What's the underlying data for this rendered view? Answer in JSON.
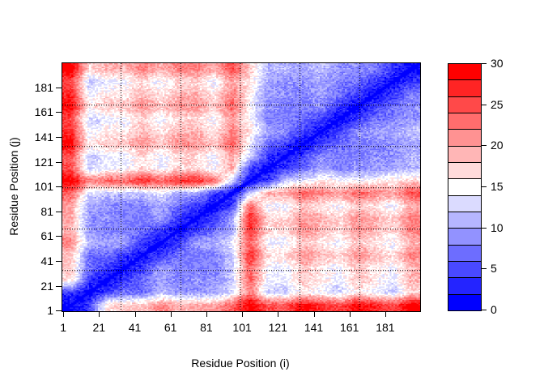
{
  "figure": {
    "background": "#ffffff",
    "plot_border_color": "#000000",
    "grid_color": "#000000",
    "text_color": "#000000"
  },
  "chart_data": {
    "type": "heatmap",
    "title": "",
    "xlabel": "Residue Position (i)",
    "ylabel": "Residue Position (j)",
    "x_range": [
      1,
      200
    ],
    "y_range": [
      1,
      200
    ],
    "x_ticks": [
      1,
      21,
      41,
      61,
      81,
      101,
      121,
      141,
      161,
      181
    ],
    "y_ticks": [
      1,
      21,
      41,
      61,
      81,
      101,
      121,
      141,
      161,
      181
    ],
    "grid": {
      "style": "dotted",
      "x_positions": [
        33.3,
        66.7,
        100,
        133.3,
        166.7
      ],
      "y_positions": [
        33.3,
        66.7,
        100,
        133.3,
        166.7
      ]
    },
    "colorbar": {
      "min": 0,
      "max": 30,
      "tick_values": [
        0,
        5,
        10,
        15,
        20,
        25,
        30
      ],
      "tick_labels": [
        "0",
        "5",
        "10",
        "15",
        "20",
        "25",
        "30"
      ],
      "colors": [
        "#0000ff",
        "#2424ff",
        "#4949ff",
        "#6d6dff",
        "#9292ff",
        "#b6b6ff",
        "#dbdbff",
        "#ffffff",
        "#ffdbdb",
        "#ffb6b6",
        "#ff9292",
        "#ff6d6d",
        "#ff4949",
        "#ff2424",
        "#ff0000"
      ]
    },
    "matrix_note": "Symmetric residue-residue distance matrix (values 0-30, estimated from pixels), downsampled to 10-residue bins: bin k covers residues 10k+1..10k+10. matrix[row][col] = distance(bin_j, bin_i). Two domains: residues ~1-100 and ~101-200 (blue intra-domain blocks, red inter-domain blocks, red linker cross near residue 101).",
    "bin_size": 10,
    "n_bins": 20,
    "matrix": [
      [
        1,
        4,
        17,
        18,
        18,
        22,
        19,
        20,
        20,
        24,
        30,
        25,
        25,
        29,
        27,
        25,
        29,
        27,
        25,
        30
      ],
      [
        4,
        1,
        4,
        7,
        7,
        11,
        9,
        9,
        10,
        13,
        22,
        12,
        12,
        16,
        14,
        12,
        16,
        14,
        12,
        17
      ],
      [
        17,
        4,
        1,
        4,
        7,
        10,
        8,
        9,
        9,
        12,
        24,
        14,
        14,
        18,
        16,
        14,
        18,
        16,
        14,
        19
      ],
      [
        18,
        7,
        4,
        1,
        4,
        10,
        8,
        8,
        8,
        12,
        24,
        14,
        14,
        18,
        16,
        14,
        18,
        16,
        14,
        19
      ],
      [
        18,
        7,
        7,
        4,
        1,
        4,
        7,
        8,
        8,
        12,
        27,
        17,
        17,
        21,
        19,
        17,
        21,
        19,
        17,
        22
      ],
      [
        22,
        11,
        10,
        10,
        4,
        1,
        4,
        10,
        10,
        14,
        24,
        14,
        14,
        18,
        16,
        14,
        18,
        16,
        14,
        19
      ],
      [
        19,
        9,
        8,
        8,
        7,
        4,
        1,
        4,
        7,
        10,
        27,
        17,
        17,
        21,
        19,
        17,
        21,
        19,
        17,
        22
      ],
      [
        20,
        9,
        9,
        8,
        8,
        10,
        4,
        1,
        4,
        10,
        27,
        17,
        17,
        21,
        19,
        17,
        21,
        19,
        17,
        22
      ],
      [
        20,
        10,
        9,
        8,
        8,
        10,
        7,
        4,
        1,
        4,
        24,
        14,
        14,
        18,
        16,
        14,
        18,
        16,
        14,
        19
      ],
      [
        24,
        13,
        12,
        12,
        12,
        14,
        10,
        10,
        4,
        1,
        12,
        20,
        20,
        24,
        22,
        20,
        24,
        22,
        20,
        25
      ],
      [
        30,
        22,
        24,
        24,
        27,
        24,
        27,
        27,
        24,
        12,
        1,
        4,
        13,
        14,
        16,
        15,
        15,
        16,
        16,
        18
      ],
      [
        25,
        12,
        14,
        14,
        17,
        14,
        17,
        17,
        14,
        20,
        4,
        1,
        4,
        7,
        10,
        8,
        9,
        9,
        10,
        11
      ],
      [
        25,
        12,
        14,
        14,
        17,
        14,
        17,
        17,
        14,
        20,
        13,
        4,
        1,
        4,
        9,
        8,
        8,
        9,
        9,
        11
      ],
      [
        29,
        16,
        18,
        18,
        21,
        18,
        21,
        21,
        18,
        24,
        14,
        7,
        4,
        1,
        4,
        7,
        8,
        8,
        9,
        10
      ],
      [
        27,
        14,
        16,
        16,
        19,
        16,
        19,
        19,
        16,
        22,
        16,
        10,
        9,
        4,
        1,
        4,
        9,
        10,
        10,
        12
      ],
      [
        25,
        12,
        14,
        14,
        17,
        14,
        17,
        17,
        14,
        20,
        15,
        8,
        8,
        7,
        4,
        1,
        4,
        7,
        8,
        9
      ],
      [
        29,
        16,
        18,
        18,
        21,
        18,
        21,
        21,
        18,
        24,
        15,
        9,
        8,
        8,
        9,
        4,
        1,
        4,
        7,
        9
      ],
      [
        27,
        14,
        16,
        16,
        19,
        16,
        19,
        19,
        16,
        22,
        16,
        9,
        9,
        8,
        10,
        7,
        4,
        1,
        4,
        8
      ],
      [
        25,
        12,
        14,
        14,
        17,
        14,
        17,
        17,
        14,
        20,
        16,
        10,
        9,
        9,
        10,
        8,
        7,
        4,
        1,
        4
      ],
      [
        30,
        17,
        19,
        19,
        22,
        19,
        22,
        22,
        19,
        25,
        18,
        11,
        11,
        10,
        12,
        9,
        9,
        8,
        4,
        1
      ]
    ]
  }
}
